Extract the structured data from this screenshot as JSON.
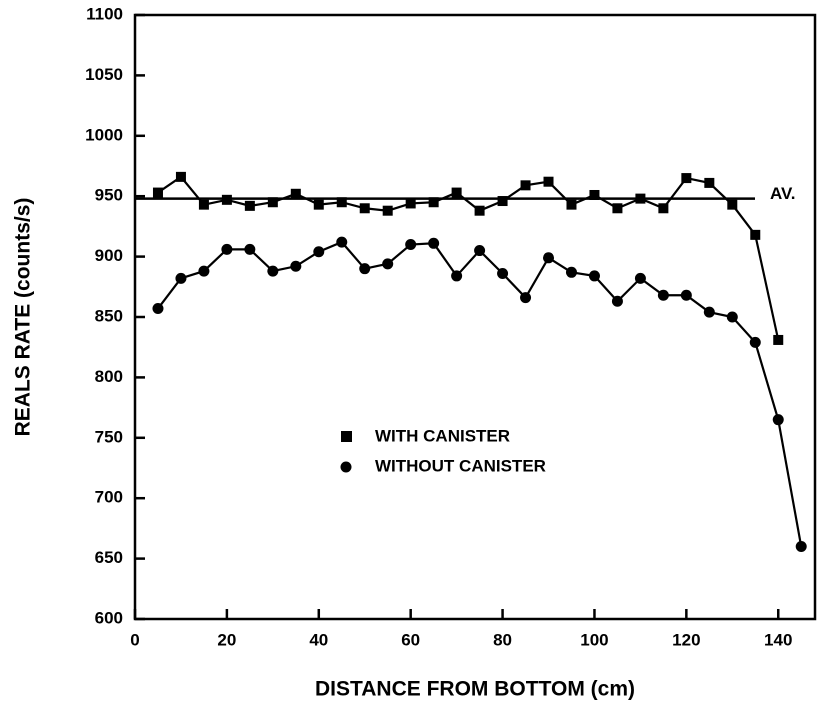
{
  "chart_data": {
    "type": "line",
    "x_label": "DISTANCE FROM BOTTOM (cm)",
    "y_label": "REALS RATE (counts/s)",
    "x": [
      5,
      10,
      15,
      20,
      25,
      30,
      35,
      40,
      45,
      50,
      55,
      60,
      65,
      70,
      75,
      80,
      85,
      90,
      95,
      100,
      105,
      110,
      115,
      120,
      125,
      130,
      135,
      140,
      145
    ],
    "series": [
      {
        "name": "WITH CANISTER",
        "marker": "square",
        "color": "#000000",
        "values": [
          953,
          966,
          943,
          947,
          942,
          945,
          952,
          943,
          945,
          940,
          938,
          944,
          945,
          953,
          938,
          946,
          959,
          962,
          943,
          951,
          940,
          948,
          940,
          965,
          961,
          943,
          918,
          831,
          null
        ]
      },
      {
        "name": "WITHOUT CANISTER",
        "marker": "circle",
        "color": "#000000",
        "values": [
          857,
          882,
          888,
          906,
          906,
          888,
          892,
          904,
          912,
          890,
          894,
          910,
          911,
          884,
          905,
          886,
          866,
          899,
          887,
          884,
          863,
          882,
          868,
          868,
          854,
          850,
          829,
          765,
          660
        ]
      }
    ],
    "reference_line": {
      "label": "AV.",
      "value": 948
    },
    "xlim": [
      0,
      148
    ],
    "xticks": [
      0,
      20,
      40,
      60,
      80,
      100,
      120,
      140
    ],
    "ylim": [
      600,
      1100
    ],
    "yticks": [
      600,
      650,
      700,
      750,
      800,
      850,
      900,
      950,
      1000,
      1050,
      1100
    ],
    "grid": false
  }
}
